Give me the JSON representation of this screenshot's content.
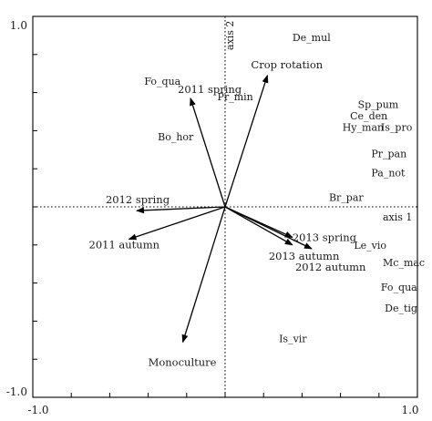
{
  "chart_data": {
    "type": "scatter",
    "title": "",
    "xlabel": "axis 1",
    "ylabel": "axis 2",
    "xlim": [
      -1.0,
      1.0
    ],
    "ylim": [
      -1.0,
      1.0
    ],
    "x_tick_labels": [
      "-1.0",
      "1.0"
    ],
    "y_tick_labels": [
      "1.0",
      "-1.0"
    ],
    "grid": false,
    "zero_lines": true,
    "environmental_vectors": [
      {
        "label": "Crop rotation",
        "x": 0.22,
        "y": 0.69
      },
      {
        "label": "2011 spring",
        "x": -0.18,
        "y": 0.57
      },
      {
        "label": "2012 spring",
        "x": -0.46,
        "y": -0.02
      },
      {
        "label": "2011 autumn",
        "x": -0.5,
        "y": -0.17
      },
      {
        "label": "2013 spring",
        "x": 0.35,
        "y": -0.16
      },
      {
        "label": "2013 autumn",
        "x": 0.35,
        "y": -0.2
      },
      {
        "label": "2012 autumn",
        "x": 0.45,
        "y": -0.22
      },
      {
        "label": "Monoculture",
        "x": -0.22,
        "y": -0.71
      }
    ],
    "species": [
      {
        "label": "De_mul",
        "x": 0.35,
        "y": 0.87
      },
      {
        "label": "Fo_qua",
        "x": -0.42,
        "y": 0.64
      },
      {
        "label": "Pr_min",
        "x": -0.04,
        "y": 0.56
      },
      {
        "label": "Sp_pum",
        "x": 0.69,
        "y": 0.52
      },
      {
        "label": "Ce_den",
        "x": 0.65,
        "y": 0.46
      },
      {
        "label": "Is_pro",
        "x": 0.81,
        "y": 0.4
      },
      {
        "label": "Hy_man",
        "x": 0.61,
        "y": 0.4
      },
      {
        "label": "Bo_hor",
        "x": -0.35,
        "y": 0.35
      },
      {
        "label": "Pr_pan",
        "x": 0.76,
        "y": 0.26
      },
      {
        "label": "Pa_not",
        "x": 0.76,
        "y": 0.16
      },
      {
        "label": "Br_par",
        "x": 0.54,
        "y": 0.03
      },
      {
        "label": "Le_vio",
        "x": 0.67,
        "y": -0.22
      },
      {
        "label": "Mc_mac",
        "x": 0.82,
        "y": -0.31
      },
      {
        "label": "Fo_qua",
        "x": 0.81,
        "y": -0.44
      },
      {
        "label": "De_tig",
        "x": 0.83,
        "y": -0.55
      },
      {
        "label": "Is_vir",
        "x": 0.28,
        "y": -0.71
      }
    ]
  }
}
